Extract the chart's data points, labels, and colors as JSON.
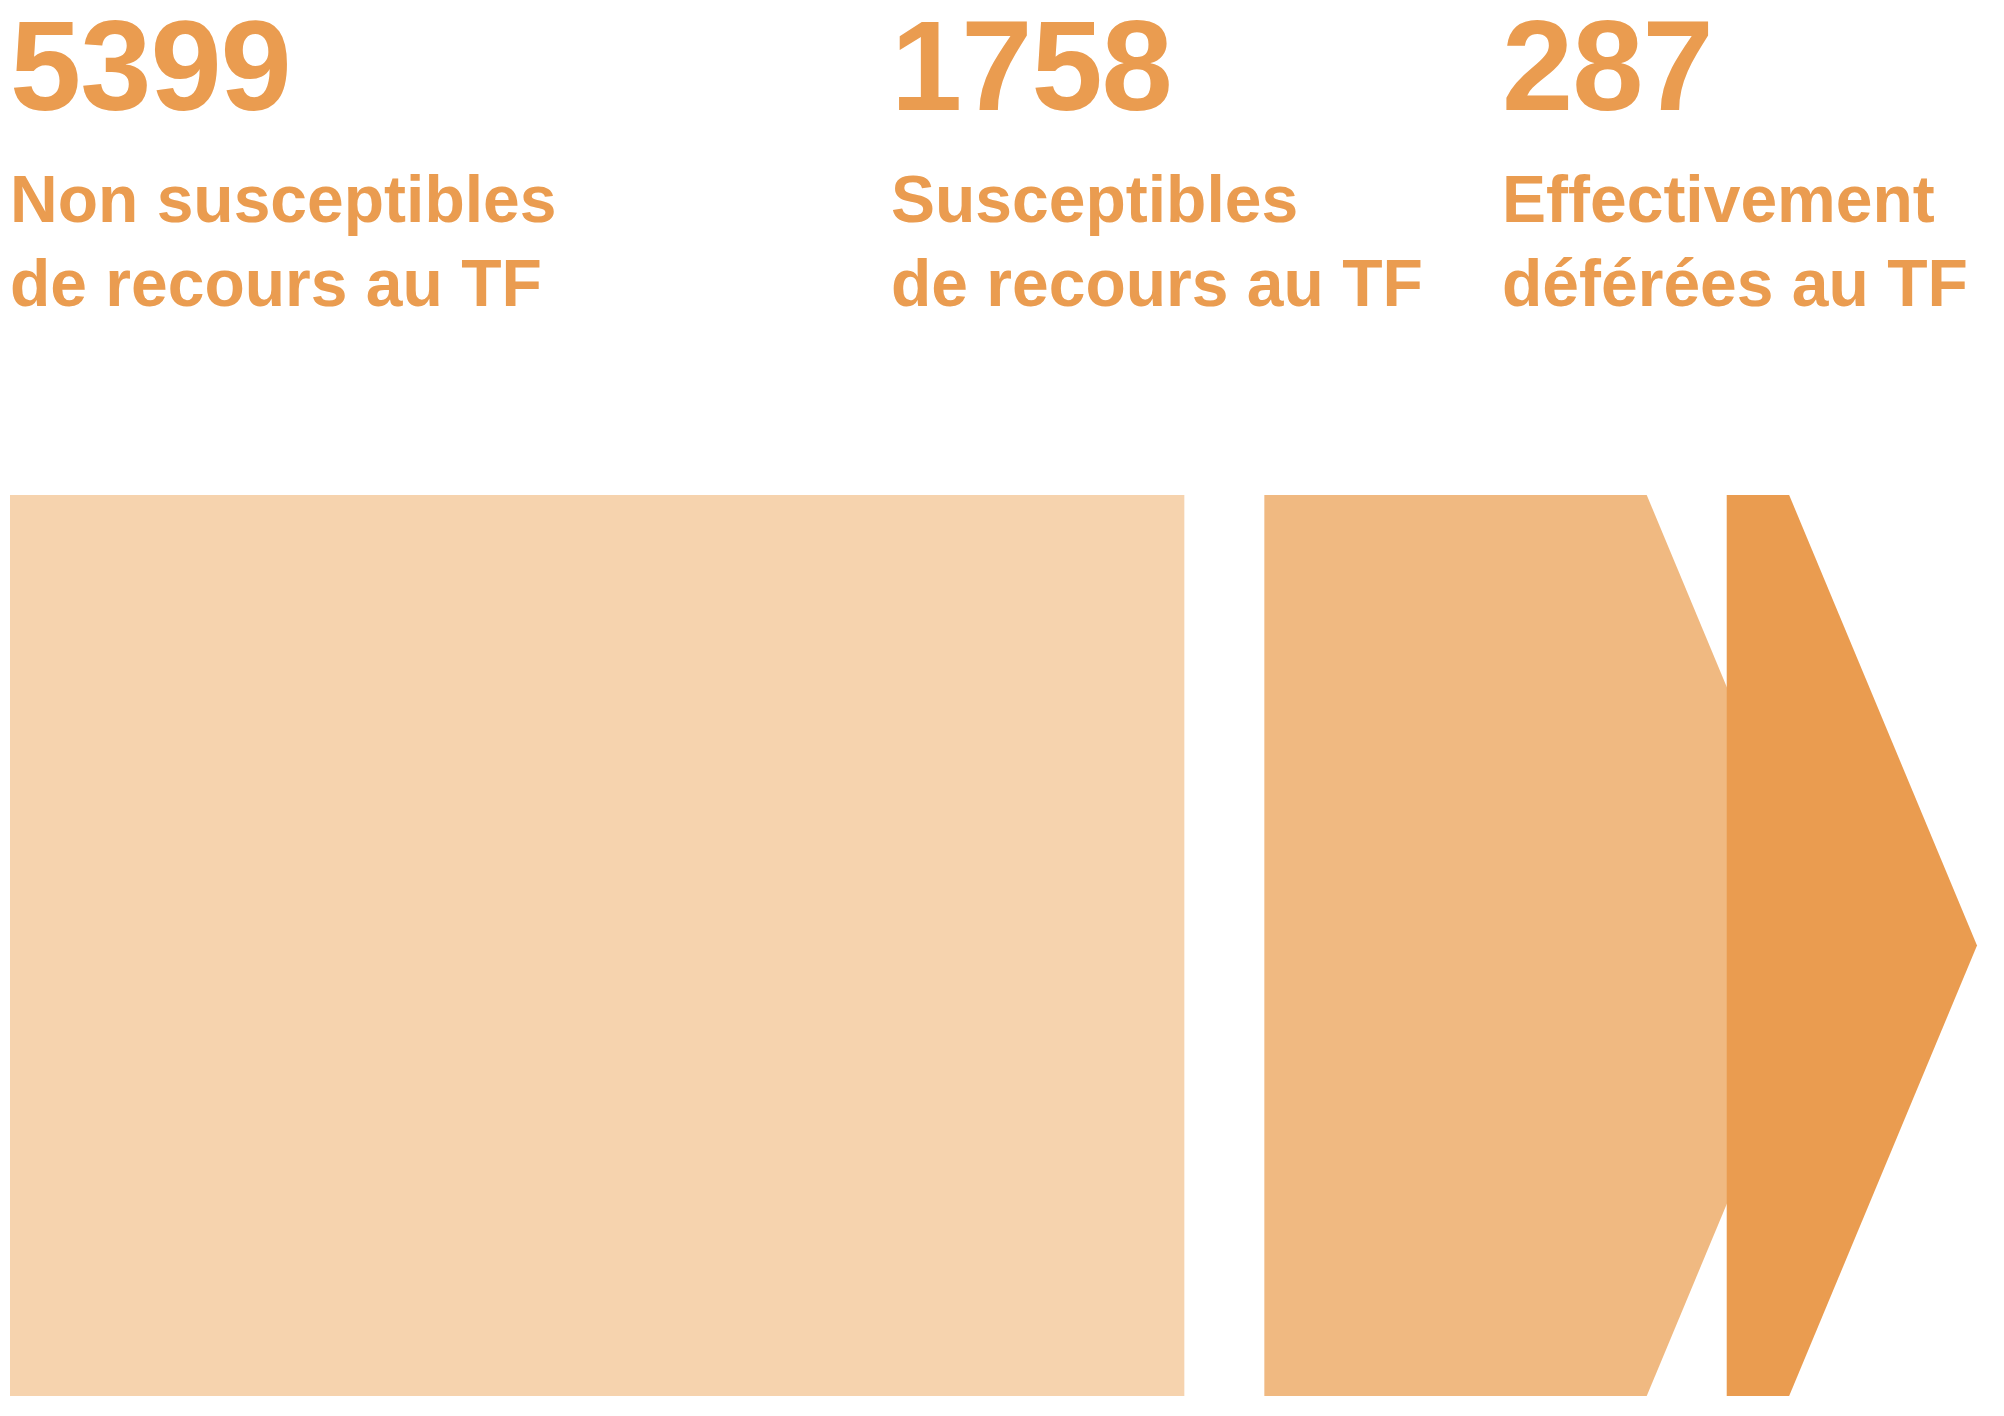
{
  "chart_data": {
    "type": "other",
    "categories": [
      "Non susceptibles\nde recours au TF",
      "Susceptibles\nde recours au TF",
      "Effectivement\ndéférées au TF"
    ],
    "values": [
      5399,
      1758,
      287
    ],
    "colors": [
      "#f6d3ae",
      "#f0b981",
      "#ea9c50"
    ],
    "data_labels": true
  }
}
